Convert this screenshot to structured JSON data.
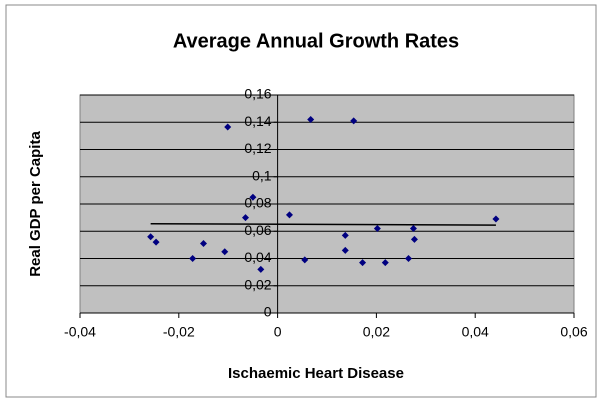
{
  "chart_data": {
    "type": "scatter",
    "title": "Average Annual Growth Rates",
    "xlabel": "Ischaemic Heart Disease",
    "ylabel": "Real GDP per Capita",
    "color": "#000080",
    "grid": true,
    "xlim": [
      -0.04,
      0.06
    ],
    "ylim": [
      0,
      0.16
    ],
    "xticks": [
      {
        "value": -0.04,
        "label": "-0,04"
      },
      {
        "value": -0.02,
        "label": "-0,02"
      },
      0,
      {
        "value": 0.02,
        "label": "0,02"
      },
      {
        "value": 0.04,
        "label": "0,04"
      },
      {
        "value": 0.06,
        "label": "0,06"
      }
    ],
    "yticks": [
      0,
      {
        "value": 0.02,
        "label": "0,02"
      },
      {
        "value": 0.04,
        "label": "0,04"
      },
      {
        "value": 0.06,
        "label": "0,06"
      },
      {
        "value": 0.08,
        "label": "0,08"
      },
      {
        "value": 0.1,
        "label": "0,1"
      },
      {
        "value": 0.12,
        "label": "0,12"
      },
      {
        "value": 0.14,
        "label": "0,14"
      },
      {
        "value": 0.16,
        "label": "0,16"
      }
    ],
    "x": [
      -0.0257,
      -0.0246,
      -0.015,
      -0.0172,
      -0.0107,
      -0.0101,
      -0.0065,
      -0.005,
      -0.0034,
      0.0024,
      0.0055,
      0.0067,
      0.0154,
      0.0137,
      0.0137,
      0.0172,
      0.0202,
      0.0218,
      0.0265,
      0.0275,
      0.0277,
      0.0442
    ],
    "y": [
      0.056,
      0.052,
      0.051,
      0.04,
      0.045,
      0.1365,
      0.07,
      0.085,
      0.032,
      0.072,
      0.039,
      0.142,
      0.141,
      0.057,
      0.046,
      0.037,
      0.062,
      0.037,
      0.04,
      0.062,
      0.054,
      0.069
    ],
    "trendline": {
      "color": "#000000",
      "x": [
        -0.0257,
        0.0442
      ],
      "y": [
        0.0655,
        0.0645
      ]
    }
  }
}
